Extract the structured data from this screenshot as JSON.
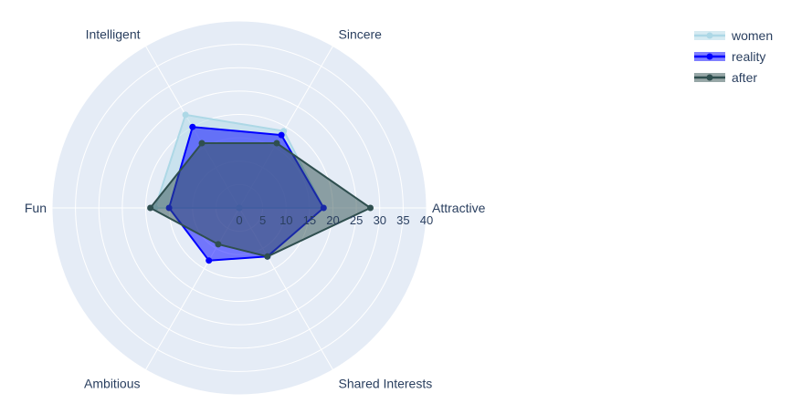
{
  "chart_data": {
    "type": "radar",
    "title": "",
    "categories": [
      "Attractive",
      "Sincere",
      "Intelligent",
      "Fun",
      "Ambitious",
      "Shared Interests"
    ],
    "radial_range": [
      0,
      40
    ],
    "radial_ticks": [
      "0",
      "5",
      "10",
      "15",
      "20",
      "25",
      "30",
      "35",
      "40"
    ],
    "legend_position": "top-right",
    "series": [
      {
        "name": "women",
        "color": "#add8e6",
        "values": [
          18,
          19,
          23,
          18,
          0,
          0
        ]
      },
      {
        "name": "reality",
        "color": "#0000ff",
        "values": [
          18,
          18,
          20,
          15,
          13,
          12
        ]
      },
      {
        "name": "after",
        "color": "#2f4f4f",
        "values": [
          28,
          16,
          16,
          19,
          9,
          12
        ]
      }
    ]
  }
}
